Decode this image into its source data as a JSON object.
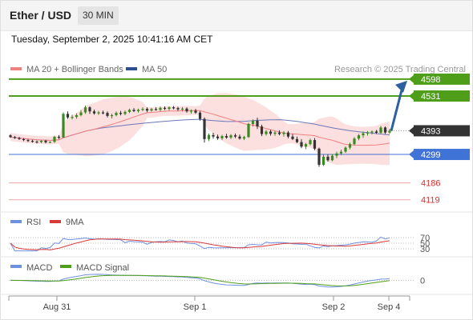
{
  "header": {
    "title": "Ether / USD",
    "timeframe": "30 MIN",
    "datetime": "Tuesday, September 2, 2025 10:41:16 AM CET"
  },
  "colors": {
    "resistance": "#4f9e1a",
    "pivot": "#3f73d6",
    "support": "#f0a3a6",
    "support_text": "#d9302f",
    "current": "#333333",
    "candle_up": "#3a8a22",
    "candle_down": "#333333",
    "ma20": "#f08080",
    "ma50": "#6b78b8",
    "bollinger": "#fbd4d4",
    "arrow": "#2e5f9f",
    "rsi": "#6f8fe0",
    "rsi_ma": "#d83a3a",
    "macd": "#6f8fe0",
    "macd_signal": "#4f9e1a"
  },
  "chart_data": {
    "type": "candlestick",
    "legend": [
      {
        "label": "MA 20 + Bollinger Bands",
        "color": "#f08080"
      },
      {
        "label": "MA 50",
        "color": "#2e4f8f"
      }
    ],
    "attribution": "Research © 2025 Trading Central",
    "ylim": [
      4080,
      4620
    ],
    "levels": [
      {
        "value": 4598,
        "label": "4598",
        "kind": "resistance"
      },
      {
        "value": 4531,
        "label": "4531",
        "kind": "resistance"
      },
      {
        "value": 4393,
        "label": "4393",
        "kind": "current"
      },
      {
        "value": 4299,
        "label": "4299",
        "kind": "pivot"
      },
      {
        "value": 4186,
        "label": "4186",
        "kind": "support"
      },
      {
        "value": 4119,
        "label": "4119",
        "kind": "support"
      }
    ],
    "x_ticks": [
      "Aug 31",
      "Sep 1",
      "Sep 2",
      "Sep 4"
    ],
    "forecast_target": 4598,
    "candles": [
      [
        4375,
        4379,
        4365,
        4368
      ],
      [
        4368,
        4372,
        4361,
        4364
      ],
      [
        4364,
        4369,
        4357,
        4360
      ],
      [
        4360,
        4364,
        4352,
        4356
      ],
      [
        4356,
        4360,
        4349,
        4353
      ],
      [
        4353,
        4357,
        4346,
        4350
      ],
      [
        4350,
        4354,
        4343,
        4348
      ],
      [
        4348,
        4356,
        4344,
        4353
      ],
      [
        4353,
        4357,
        4343,
        4347
      ],
      [
        4347,
        4351,
        4344,
        4349
      ],
      [
        4349,
        4373,
        4345,
        4369
      ],
      [
        4369,
        4376,
        4360,
        4366
      ],
      [
        4366,
        4466,
        4365,
        4460
      ],
      [
        4460,
        4470,
        4440,
        4446
      ],
      [
        4446,
        4457,
        4438,
        4448
      ],
      [
        4448,
        4462,
        4441,
        4455
      ],
      [
        4455,
        4475,
        4450,
        4466
      ],
      [
        4466,
        4493,
        4460,
        4486
      ],
      [
        4486,
        4490,
        4460,
        4470
      ],
      [
        4470,
        4477,
        4457,
        4462
      ],
      [
        4462,
        4472,
        4456,
        4466
      ],
      [
        4466,
        4473,
        4458,
        4464
      ],
      [
        4464,
        4470,
        4446,
        4452
      ],
      [
        4452,
        4461,
        4442,
        4455
      ],
      [
        4455,
        4470,
        4450,
        4464
      ],
      [
        4464,
        4472,
        4454,
        4460
      ],
      [
        4460,
        4473,
        4455,
        4468
      ],
      [
        4468,
        4481,
        4463,
        4476
      ],
      [
        4476,
        4483,
        4467,
        4471
      ],
      [
        4471,
        4481,
        4465,
        4476
      ],
      [
        4476,
        4486,
        4471,
        4480
      ],
      [
        4480,
        4486,
        4467,
        4473
      ],
      [
        4473,
        4484,
        4469,
        4479
      ],
      [
        4479,
        4486,
        4473,
        4476
      ],
      [
        4476,
        4489,
        4471,
        4484
      ],
      [
        4484,
        4490,
        4475,
        4480
      ],
      [
        4480,
        4490,
        4473,
        4486
      ],
      [
        4486,
        4491,
        4478,
        4483
      ],
      [
        4483,
        4488,
        4472,
        4478
      ],
      [
        4478,
        4487,
        4470,
        4481
      ],
      [
        4481,
        4486,
        4465,
        4470
      ],
      [
        4470,
        4478,
        4461,
        4473
      ],
      [
        4473,
        4480,
        4460,
        4465
      ],
      [
        4465,
        4471,
        4433,
        4440
      ],
      [
        4440,
        4446,
        4346,
        4360
      ],
      [
        4360,
        4382,
        4352,
        4376
      ],
      [
        4376,
        4385,
        4362,
        4370
      ],
      [
        4370,
        4378,
        4357,
        4363
      ],
      [
        4363,
        4377,
        4356,
        4372
      ],
      [
        4372,
        4381,
        4361,
        4366
      ],
      [
        4366,
        4380,
        4360,
        4375
      ],
      [
        4375,
        4382,
        4364,
        4370
      ],
      [
        4370,
        4378,
        4358,
        4362
      ],
      [
        4362,
        4373,
        4356,
        4368
      ],
      [
        4368,
        4425,
        4365,
        4420
      ],
      [
        4420,
        4438,
        4410,
        4433
      ],
      [
        4433,
        4445,
        4400,
        4410
      ],
      [
        4410,
        4417,
        4372,
        4380
      ],
      [
        4380,
        4396,
        4374,
        4390
      ],
      [
        4390,
        4397,
        4374,
        4381
      ],
      [
        4381,
        4392,
        4373,
        4386
      ],
      [
        4386,
        4395,
        4375,
        4380
      ],
      [
        4380,
        4392,
        4370,
        4386
      ],
      [
        4386,
        4392,
        4363,
        4370
      ],
      [
        4370,
        4380,
        4356,
        4360
      ],
      [
        4360,
        4370,
        4344,
        4348
      ],
      [
        4348,
        4360,
        4324,
        4330
      ],
      [
        4330,
        4345,
        4320,
        4340
      ],
      [
        4340,
        4362,
        4335,
        4356
      ],
      [
        4356,
        4364,
        4316,
        4322
      ],
      [
        4322,
        4326,
        4250,
        4258
      ],
      [
        4258,
        4300,
        4253,
        4290
      ],
      [
        4290,
        4300,
        4270,
        4276
      ],
      [
        4276,
        4300,
        4272,
        4294
      ],
      [
        4294,
        4310,
        4284,
        4303
      ],
      [
        4303,
        4318,
        4296,
        4310
      ],
      [
        4310,
        4331,
        4305,
        4326
      ],
      [
        4326,
        4346,
        4319,
        4340
      ],
      [
        4340,
        4368,
        4335,
        4362
      ],
      [
        4362,
        4380,
        4355,
        4375
      ],
      [
        4375,
        4390,
        4365,
        4383
      ],
      [
        4383,
        4392,
        4374,
        4386
      ],
      [
        4386,
        4394,
        4378,
        4390
      ],
      [
        4390,
        4396,
        4380,
        4385
      ],
      [
        4385,
        4412,
        4380,
        4406
      ],
      [
        4406,
        4410,
        4380,
        4386
      ],
      [
        4386,
        4401,
        4381,
        4393
      ]
    ],
    "rsi": {
      "legend": [
        {
          "label": "RSI",
          "color": "#6f8fe0"
        },
        {
          "label": "9MA",
          "color": "#d83a3a"
        }
      ],
      "levels": [
        70,
        50,
        30
      ],
      "ylim": [
        10,
        90
      ]
    },
    "macd": {
      "legend": [
        {
          "label": "MACD",
          "color": "#6f8fe0"
        },
        {
          "label": "MACD Signal",
          "color": "#4f9e1a"
        }
      ],
      "zero_label": "0",
      "ylim": [
        -60,
        40
      ]
    }
  }
}
